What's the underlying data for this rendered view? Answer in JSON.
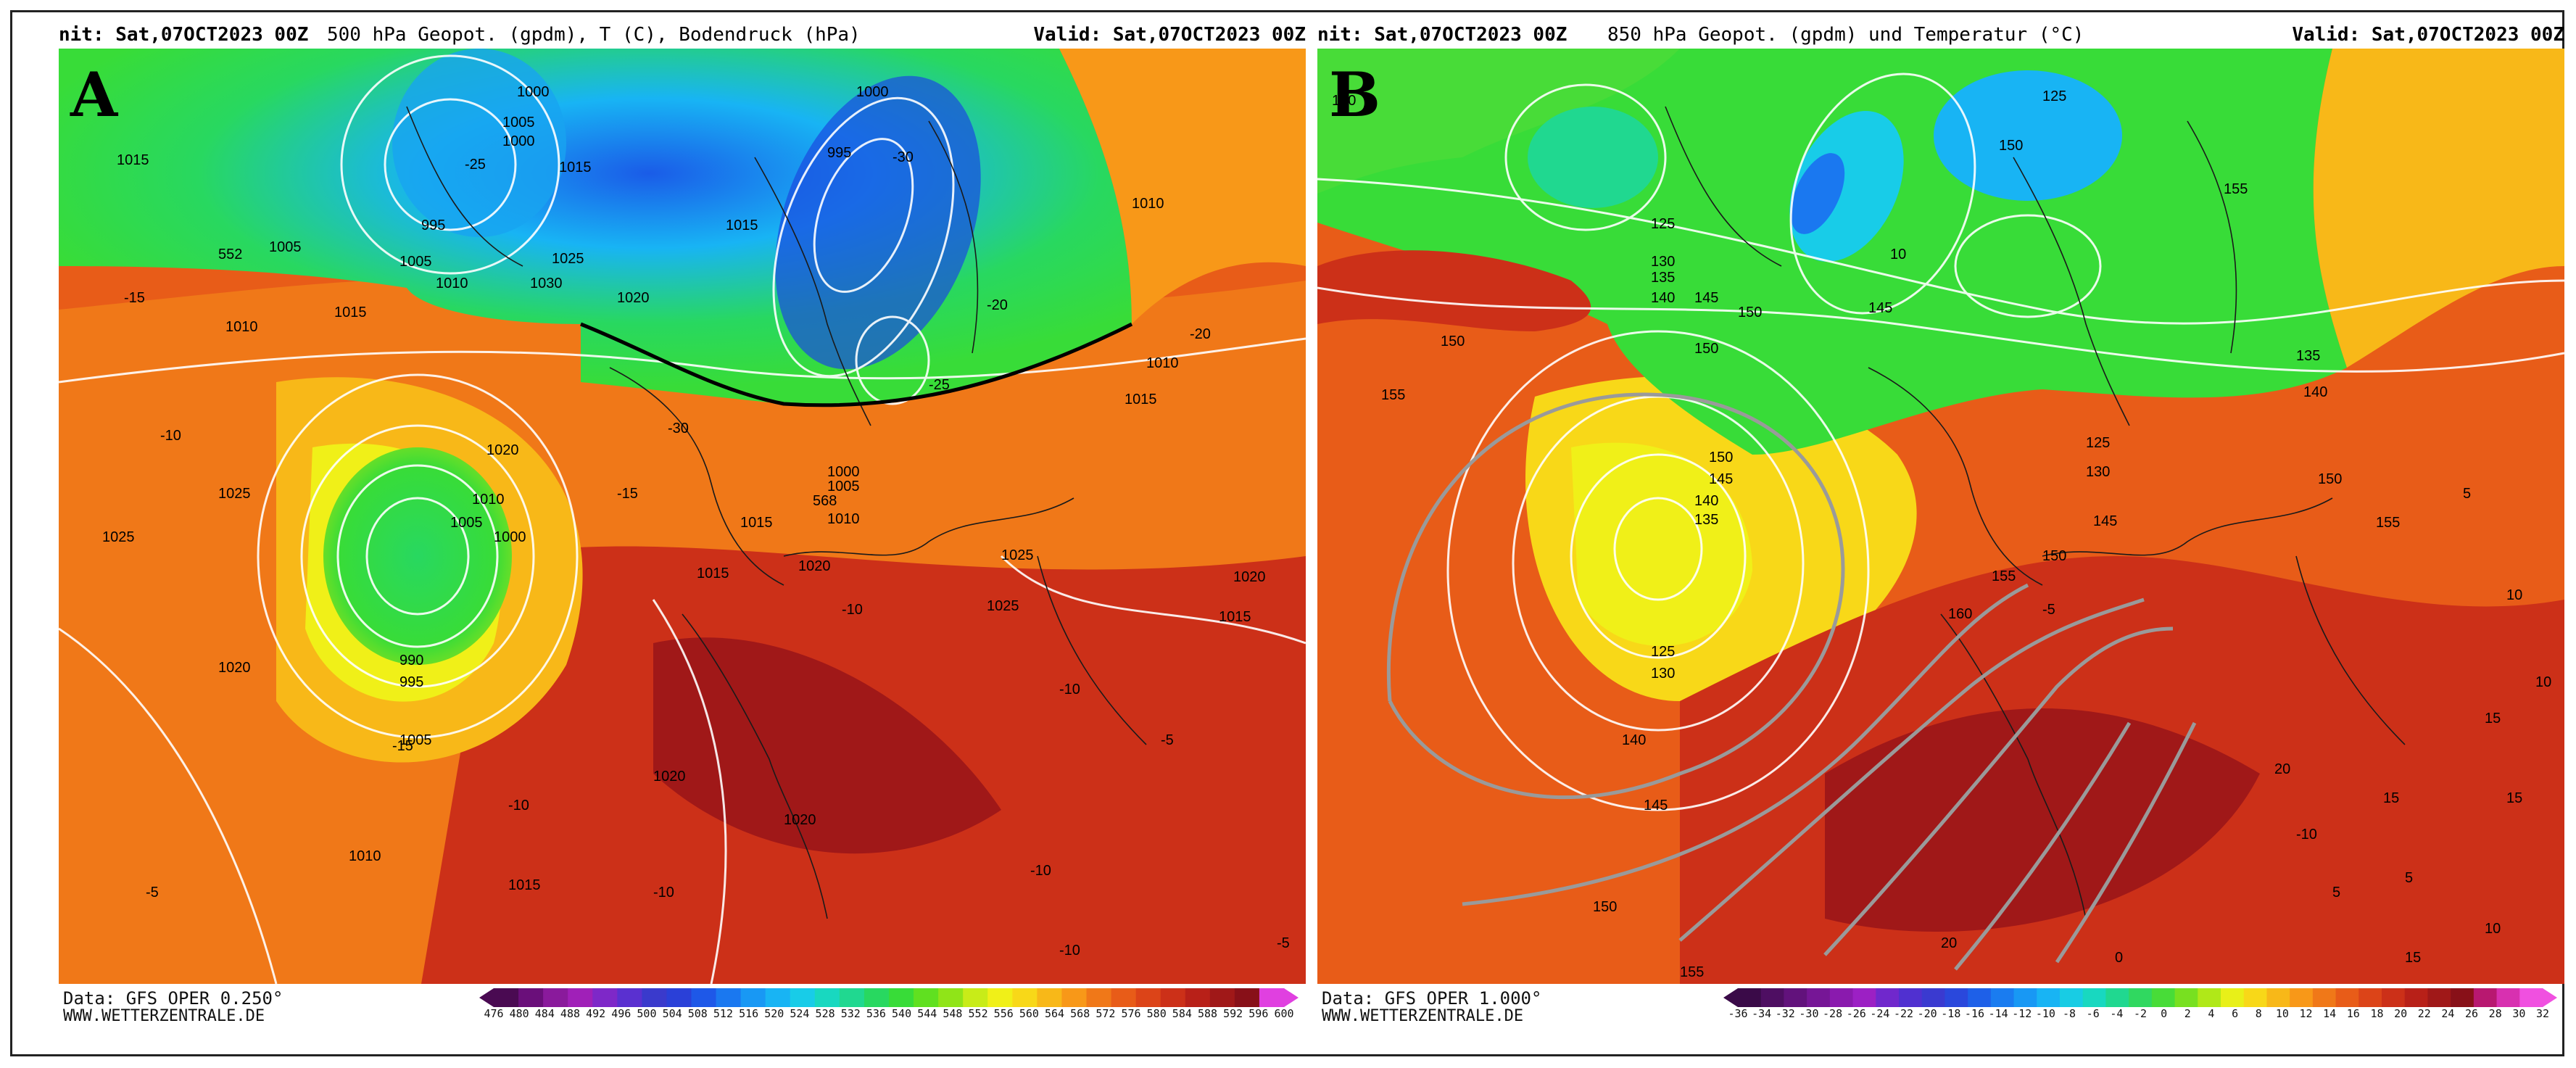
{
  "panel_a": {
    "letter": "A",
    "header_left": "nit: Sat,07OCT2023 00Z",
    "header_title": "500 hPa Geopot. (gpdm), T (C), Bodendruck (hPa)",
    "header_right": "Valid: Sat,07OCT2023 00Z",
    "source": "Data: GFS OPER 0.250°",
    "website": "WWW.WETTERZENTRALE.DE",
    "colorbar_ticks": [
      "476",
      "480",
      "484",
      "488",
      "492",
      "496",
      "500",
      "504",
      "508",
      "512",
      "516",
      "520",
      "524",
      "528",
      "532",
      "536",
      "540",
      "544",
      "548",
      "552",
      "556",
      "560",
      "564",
      "568",
      "572",
      "576",
      "580",
      "584",
      "588",
      "592",
      "596",
      "600"
    ],
    "colorbar_colors": [
      "#4a0a52",
      "#6a0f7a",
      "#8a1a9c",
      "#a020b8",
      "#7e28c8",
      "#5a30d0",
      "#3a3acc",
      "#2a40d8",
      "#1e58e8",
      "#1a78f0",
      "#1898f4",
      "#18b4f4",
      "#18cce8",
      "#18d8c0",
      "#20d890",
      "#28d860",
      "#38dc38",
      "#60e020",
      "#90e418",
      "#c8ec18",
      "#f0f018",
      "#f8d818",
      "#f8b818",
      "#f89818",
      "#f07818",
      "#e85c18",
      "#dc4418",
      "#cc3018",
      "#b82018",
      "#a01818",
      "#881018",
      "#e040e0"
    ],
    "isobars": [
      "1000",
      "1005",
      "1000",
      "1015",
      "1015",
      "995",
      "1005",
      "1010",
      "1025",
      "1030",
      "1020",
      "1000",
      "995",
      "1005",
      "1010",
      "1015",
      "1020",
      "1025",
      "1010",
      "1005",
      "1000",
      "1015",
      "990",
      "995",
      "1005",
      "1010",
      "1015",
      "1020",
      "1025",
      "1015",
      "1010",
      "1020",
      "1025",
      "1015",
      "1020",
      "1025",
      "1010",
      "1015",
      "1020",
      "1015",
      "552",
      "568",
      "1000",
      "1005",
      "1010",
      "1020"
    ],
    "temps": [
      "-25",
      "-30",
      "-15",
      "-20",
      "-25",
      "-30",
      "-20",
      "-10",
      "-15",
      "-10",
      "-15",
      "-10",
      "-5",
      "-10",
      "-10",
      "-5",
      "-10",
      "-5",
      "-10"
    ]
  },
  "panel_b": {
    "letter": "B",
    "header_left": "nit: Sat,07OCT2023 00Z",
    "header_title": "850 hPa Geopot. (gpdm) und Temperatur (°C)",
    "header_right": "Valid: Sat,07OCT2023 00Z",
    "source": "Data: GFS OPER 1.000°",
    "website": "WWW.WETTERZENTRALE.DE",
    "colorbar_ticks": [
      "-36",
      "-34",
      "-32",
      "-30",
      "-28",
      "-26",
      "-24",
      "-22",
      "-20",
      "-18",
      "-16",
      "-14",
      "-12",
      "-10",
      "-8",
      "-6",
      "-4",
      "-2",
      "0",
      "2",
      "4",
      "6",
      "8",
      "10",
      "12",
      "14",
      "16",
      "18",
      "20",
      "22",
      "24",
      "26",
      "28",
      "30",
      "32"
    ],
    "colorbar_colors": [
      "#3a0a48",
      "#4e0e62",
      "#62127c",
      "#761696",
      "#8a1aae",
      "#9c20c4",
      "#7028cc",
      "#5030d0",
      "#3a3ad0",
      "#2a48dc",
      "#1e60e8",
      "#1a7cf0",
      "#1898f4",
      "#18b4f4",
      "#18cce4",
      "#18d8c0",
      "#20d890",
      "#30d860",
      "#48dc38",
      "#78e020",
      "#b0e818",
      "#e8f018",
      "#f8d818",
      "#f8b818",
      "#f89818",
      "#f07818",
      "#e85c18",
      "#dc4418",
      "#cc3018",
      "#b82018",
      "#a01818",
      "#881018",
      "#b81870",
      "#d830b0",
      "#f050e0"
    ],
    "heights": [
      "140",
      "125",
      "130",
      "135",
      "140",
      "145",
      "150",
      "125",
      "150",
      "145",
      "155",
      "150",
      "150",
      "140",
      "145",
      "135",
      "125",
      "130",
      "140",
      "145",
      "150",
      "155",
      "150",
      "160",
      "155",
      "125",
      "130",
      "145",
      "150",
      "155",
      "140",
      "135",
      "150",
      "155",
      "10"
    ],
    "temps": [
      "-5",
      "-10",
      "0",
      "5",
      "10",
      "15",
      "20",
      "15",
      "5",
      "10",
      "15",
      "10",
      "5",
      "15",
      "20"
    ]
  }
}
